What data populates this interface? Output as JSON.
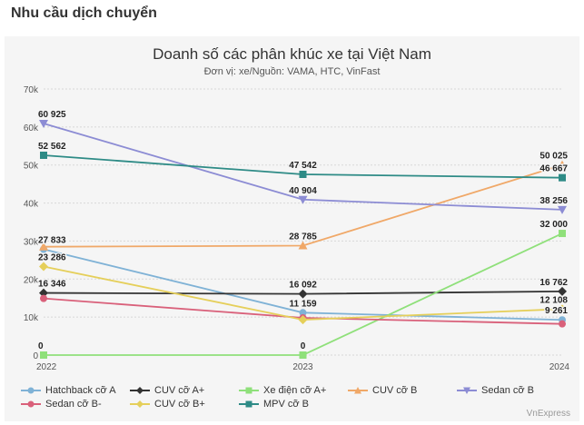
{
  "heading": "Nhu cầu dịch chuyển",
  "source": "VnExpress",
  "chart_data": {
    "type": "line",
    "title": "Doanh số các phân khúc xe tại Việt Nam",
    "subtitle": "Đơn vị: xe/Nguồn: VAMA, HTC, VinFast",
    "x": [
      "2022",
      "2023",
      "2024"
    ],
    "ylim": [
      0,
      70000
    ],
    "yticks": [
      "0",
      "10k",
      "20k",
      "30k",
      "40k",
      "50k",
      "60k",
      "70k"
    ],
    "grid": true,
    "legend_position": "bottom",
    "series": [
      {
        "name": "Hatchback cỡ A",
        "values": [
          27833,
          11159,
          9261
        ],
        "color": "#7fb2d6",
        "marker": "circle",
        "labels": [
          "27 833",
          "11 159",
          "9 261"
        ]
      },
      {
        "name": "CUV cỡ A+",
        "values": [
          16346,
          16092,
          16762
        ],
        "color": "#333333",
        "marker": "diamond",
        "labels": [
          "16 346",
          "16 092",
          "16 762"
        ]
      },
      {
        "name": "Xe điện cỡ A+",
        "values": [
          0,
          0,
          32000
        ],
        "color": "#8fe07a",
        "marker": "square",
        "labels": [
          "0",
          "0",
          "32 000"
        ]
      },
      {
        "name": "CUV cỡ B",
        "values": [
          28500,
          28785,
          50025
        ],
        "color": "#f0a868",
        "marker": "triangle",
        "labels": [
          "",
          "28 785",
          "50 025"
        ]
      },
      {
        "name": "Sedan cỡ B",
        "values": [
          60925,
          40904,
          38256
        ],
        "color": "#8c8cd4",
        "marker": "triangle-down",
        "labels": [
          "60 925",
          "40 904",
          "38 256"
        ]
      },
      {
        "name": "Sedan cỡ B-",
        "values": [
          14900,
          9800,
          8200
        ],
        "color": "#d9607a",
        "marker": "circle",
        "labels": [
          "",
          "",
          ""
        ]
      },
      {
        "name": "CUV cỡ B+",
        "values": [
          23286,
          9300,
          12108
        ],
        "color": "#e5cf5a",
        "marker": "diamond",
        "labels": [
          "23 286",
          "",
          "12 108"
        ]
      },
      {
        "name": "MPV cỡ B",
        "values": [
          52562,
          47542,
          46667
        ],
        "color": "#2e8b86",
        "marker": "square",
        "labels": [
          "52 562",
          "47 542",
          "46 667"
        ]
      }
    ]
  }
}
